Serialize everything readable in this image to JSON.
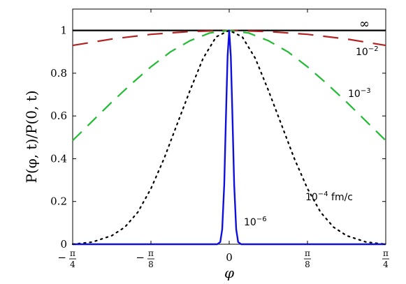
{
  "chart_data": {
    "type": "line",
    "title": "",
    "xlabel": "φ",
    "ylabel": "P(φ, t)/P(0, t)",
    "xlim": [
      -0.7853981634,
      0.7853981634
    ],
    "ylim": [
      0,
      1.1
    ],
    "grid": false,
    "x_ticks": [
      {
        "value": -0.7853981634,
        "sign": "−",
        "num": "π",
        "den": "4"
      },
      {
        "value": -0.3926990817,
        "sign": "−",
        "num": "π",
        "den": "8"
      },
      {
        "value": 0,
        "sign": "",
        "num": "0",
        "den": ""
      },
      {
        "value": 0.3926990817,
        "sign": "",
        "num": "π",
        "den": "8"
      },
      {
        "value": 0.7853981634,
        "sign": "",
        "num": "π",
        "den": "4"
      }
    ],
    "y_ticks": [
      {
        "value": 0,
        "label": "0"
      },
      {
        "value": 0.2,
        "label": "0.2"
      },
      {
        "value": 0.4,
        "label": "0.4"
      },
      {
        "value": 0.6,
        "label": "0.6"
      },
      {
        "value": 0.8,
        "label": "0.8"
      },
      {
        "value": 1.0,
        "label": "1"
      }
    ],
    "series": [
      {
        "label_base": "∞",
        "label_exp": "",
        "label_suffix": "",
        "color": "#000000",
        "style": "solid",
        "width": 2.2,
        "x": [
          -0.7854,
          0,
          0.7854
        ],
        "y": [
          1.0,
          1.0,
          1.0
        ]
      },
      {
        "label_base": "10",
        "label_exp": "−2",
        "label_suffix": "",
        "color": "#b22222",
        "style": "longdash",
        "width": 2.2,
        "x": [
          -0.7854,
          -0.589,
          -0.3927,
          -0.1963,
          0,
          0.1963,
          0.3927,
          0.589,
          0.7854
        ],
        "y": [
          0.93,
          0.96,
          0.982,
          0.995,
          1.0,
          0.995,
          0.982,
          0.96,
          0.93
        ]
      },
      {
        "label_base": "10",
        "label_exp": "−3",
        "label_suffix": "",
        "color": "#22bb33",
        "style": "dash",
        "width": 2.2,
        "x": [
          -0.7854,
          -0.6872,
          -0.589,
          -0.4909,
          -0.3927,
          -0.2945,
          -0.1963,
          -0.0982,
          0,
          0.0982,
          0.1963,
          0.2945,
          0.3927,
          0.4909,
          0.589,
          0.6872,
          0.7854
        ],
        "y": [
          0.485,
          0.575,
          0.665,
          0.75,
          0.83,
          0.9,
          0.952,
          0.988,
          1.0,
          0.988,
          0.952,
          0.9,
          0.83,
          0.75,
          0.665,
          0.575,
          0.485
        ]
      },
      {
        "label_base": "10",
        "label_exp": "−4",
        "label_suffix": " fm/c",
        "color": "#000000",
        "style": "dot",
        "width": 2.2,
        "x": [
          -0.7854,
          -0.6872,
          -0.589,
          -0.5236,
          -0.4581,
          -0.3927,
          -0.3272,
          -0.2618,
          -0.1963,
          -0.1309,
          -0.0654,
          0,
          0.0654,
          0.1309,
          0.1963,
          0.2618,
          0.3272,
          0.3927,
          0.4581,
          0.5236,
          0.589,
          0.6872,
          0.7854
        ],
        "y": [
          0.0,
          0.01,
          0.04,
          0.08,
          0.15,
          0.26,
          0.4,
          0.56,
          0.72,
          0.87,
          0.97,
          1.0,
          0.97,
          0.87,
          0.72,
          0.56,
          0.4,
          0.26,
          0.15,
          0.08,
          0.04,
          0.01,
          0.0
        ]
      },
      {
        "label_base": "10",
        "label_exp": "−6",
        "label_suffix": "",
        "color": "#1010dd",
        "style": "solid",
        "width": 2.4,
        "x": [
          -0.7854,
          -0.06,
          -0.045,
          -0.035,
          -0.025,
          -0.015,
          -0.008,
          0,
          0.008,
          0.015,
          0.025,
          0.035,
          0.045,
          0.06,
          0.7854
        ],
        "y": [
          0.0,
          0.0,
          0.01,
          0.07,
          0.28,
          0.64,
          0.88,
          1.0,
          0.88,
          0.64,
          0.28,
          0.07,
          0.01,
          0.0,
          0.0
        ]
      }
    ]
  }
}
